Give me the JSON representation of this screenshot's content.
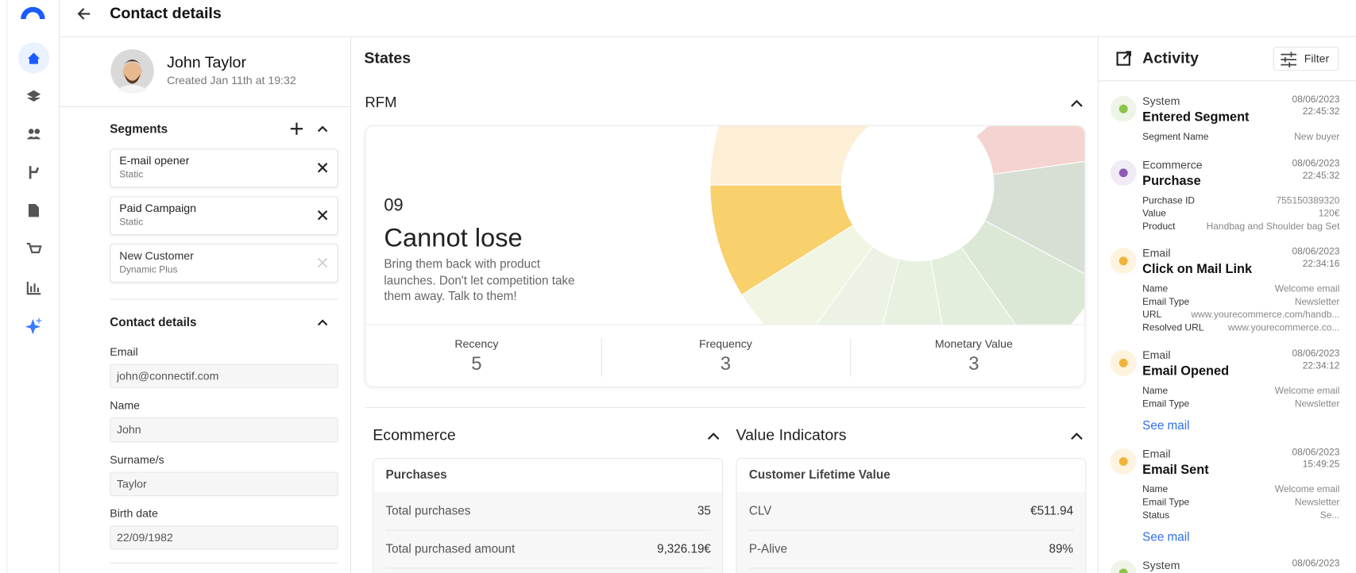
{
  "header": {
    "title": "Contact details"
  },
  "profile": {
    "name": "John Taylor",
    "created": "Created Jan 11th at 19:32"
  },
  "segments": {
    "title": "Segments",
    "items": [
      {
        "name": "E-mail opener",
        "type": "Static"
      },
      {
        "name": "Paid Campaign",
        "type": "Static"
      },
      {
        "name": "New Customer",
        "type": "Dynamic Plus"
      }
    ]
  },
  "contact_details": {
    "title": "Contact details",
    "fields": [
      {
        "label": "Email",
        "value": "john@connectif.com"
      },
      {
        "label": "Name",
        "value": "John"
      },
      {
        "label": "Surname/s",
        "value": "Taylor"
      },
      {
        "label": "Birth date",
        "value": "22/09/1982"
      }
    ]
  },
  "states": {
    "title": "States",
    "rfm": {
      "title": "RFM",
      "code": "09",
      "segment": "Cannot lose",
      "description": "Bring them back with product launches. Don't let competition take them away. Talk to them!",
      "metrics": [
        {
          "label": "Recency",
          "value": 5
        },
        {
          "label": "Frequency",
          "value": 3
        },
        {
          "label": "Monetary Value",
          "value": 3
        }
      ]
    }
  },
  "ecommerce": {
    "title": "Ecommerce",
    "card_title": "Purchases",
    "rows": [
      {
        "label": "Total purchases",
        "value": "35"
      },
      {
        "label": "Total purchased amount",
        "value": "9,326.19€"
      }
    ]
  },
  "value_indicators": {
    "title": "Value Indicators",
    "card_title": "Customer Lifetime Value",
    "rows": [
      {
        "label": "CLV",
        "value": "€511.94"
      },
      {
        "label": "P-Alive",
        "value": "89%"
      }
    ]
  },
  "activity": {
    "title": "Activity",
    "filter": "Filter",
    "events": [
      {
        "source": "System",
        "title": "Entered Segment",
        "date": "08/06/2023",
        "time": "22:45:32",
        "fields": [
          {
            "label": "Segment Name",
            "value": "New buyer"
          }
        ]
      },
      {
        "source": "Ecommerce",
        "title": "Purchase",
        "date": "08/06/2023",
        "time": "22:45:32",
        "fields": [
          {
            "label": "Purchase ID",
            "value": "755150389320"
          },
          {
            "label": "Value",
            "value": "120€"
          },
          {
            "label": "Product",
            "value": "Handbag and Shoulder bag Set"
          }
        ]
      },
      {
        "source": "Email",
        "title": "Click on Mail Link",
        "date": "08/06/2023",
        "time": "22:34:16",
        "fields": [
          {
            "label": "Name",
            "value": "Welcome email"
          },
          {
            "label": "Email Type",
            "value": "Newsletter"
          },
          {
            "label": "URL",
            "value": "www.yourecommerce.com/handb..."
          },
          {
            "label": "Resolved URL",
            "value": "www.yourecommerce.co..."
          }
        ]
      },
      {
        "source": "Email",
        "title": "Email Opened",
        "date": "08/06/2023",
        "time": "22:34:12",
        "fields": [
          {
            "label": "Name",
            "value": "Welcome email"
          },
          {
            "label": "Email Type",
            "value": "Newsletter"
          }
        ],
        "link": "See mail"
      },
      {
        "source": "Email",
        "title": "Email Sent",
        "date": "08/06/2023",
        "time": "15:49:25",
        "fields": [
          {
            "label": "Name",
            "value": "Welcome email"
          },
          {
            "label": "Email Type",
            "value": "Newsletter"
          },
          {
            "label": "Status",
            "value": "Se..."
          }
        ],
        "link": "See mail"
      },
      {
        "source": "System",
        "date": "08/06/2023"
      }
    ]
  }
}
